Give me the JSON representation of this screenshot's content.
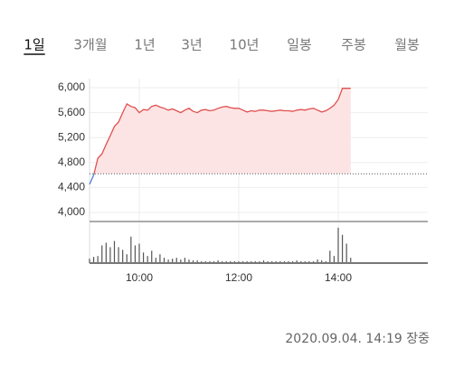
{
  "tabs": [
    "1일",
    "3개월",
    "1년",
    "3년",
    "10년",
    "일봉",
    "주봉",
    "월봉"
  ],
  "selected_tab": 0,
  "timestamp": "2020.09.04. 14:19 장중",
  "chart_data": [
    {
      "type": "line",
      "x": [
        "09:00",
        "09:05",
        "09:10",
        "09:15",
        "09:20",
        "09:25",
        "09:30",
        "09:35",
        "09:40",
        "09:45",
        "09:50",
        "09:55",
        "10:00",
        "10:05",
        "10:10",
        "10:15",
        "10:20",
        "10:25",
        "10:30",
        "10:35",
        "10:40",
        "10:45",
        "10:50",
        "10:55",
        "11:00",
        "11:05",
        "11:10",
        "11:15",
        "11:20",
        "11:25",
        "11:30",
        "11:35",
        "11:40",
        "11:45",
        "11:50",
        "11:55",
        "12:00",
        "12:05",
        "12:10",
        "12:15",
        "12:20",
        "12:25",
        "12:30",
        "12:35",
        "12:40",
        "12:45",
        "12:50",
        "12:55",
        "13:00",
        "13:05",
        "13:10",
        "13:15",
        "13:20",
        "13:25",
        "13:30",
        "13:35",
        "13:40",
        "13:45",
        "13:50",
        "13:55",
        "14:00",
        "14:05",
        "14:10",
        "14:15"
      ],
      "values": [
        4450,
        4600,
        4870,
        4940,
        5090,
        5230,
        5380,
        5450,
        5600,
        5740,
        5700,
        5680,
        5600,
        5650,
        5640,
        5700,
        5720,
        5690,
        5670,
        5640,
        5660,
        5630,
        5600,
        5640,
        5670,
        5620,
        5600,
        5640,
        5650,
        5630,
        5640,
        5670,
        5690,
        5700,
        5680,
        5670,
        5670,
        5640,
        5610,
        5630,
        5620,
        5640,
        5640,
        5630,
        5620,
        5630,
        5640,
        5630,
        5630,
        5620,
        5640,
        5650,
        5640,
        5660,
        5670,
        5640,
        5610,
        5630,
        5670,
        5720,
        5810,
        5990,
        5990,
        5990
      ],
      "baseline": 4620,
      "color_up": "#e0504f",
      "color_down": "#4a7bd0",
      "fill_up": "#fde4e4",
      "xlim": [
        "09:00",
        "15:48"
      ],
      "xticks": [
        "10:00",
        "12:00",
        "14:00"
      ],
      "ylim": [
        3855,
        6145
      ],
      "yticks": [
        {
          "value": 6000,
          "label": "6,000"
        },
        {
          "value": 5600,
          "label": "5,600"
        },
        {
          "value": 5200,
          "label": "5,200"
        },
        {
          "value": 4800,
          "label": "4,800"
        },
        {
          "value": 4400,
          "label": "4,400"
        },
        {
          "value": 4000,
          "label": "4,000"
        }
      ],
      "grid": true
    },
    {
      "type": "bar",
      "values": [
        5,
        7,
        8,
        20,
        23,
        18,
        25,
        18,
        15,
        10,
        30,
        20,
        22,
        12,
        8,
        14,
        6,
        10,
        6,
        4,
        5,
        6,
        4,
        6,
        4,
        3,
        3,
        2,
        2,
        2,
        2,
        3,
        2,
        2,
        2,
        2,
        2,
        2,
        2,
        2,
        2,
        2,
        3,
        2,
        2,
        2,
        2,
        2,
        2,
        2,
        3,
        2,
        2,
        2,
        2,
        4,
        3,
        2,
        14,
        8,
        40,
        32,
        22,
        6
      ],
      "color": "#555555",
      "ylim": [
        0,
        45
      ]
    }
  ]
}
